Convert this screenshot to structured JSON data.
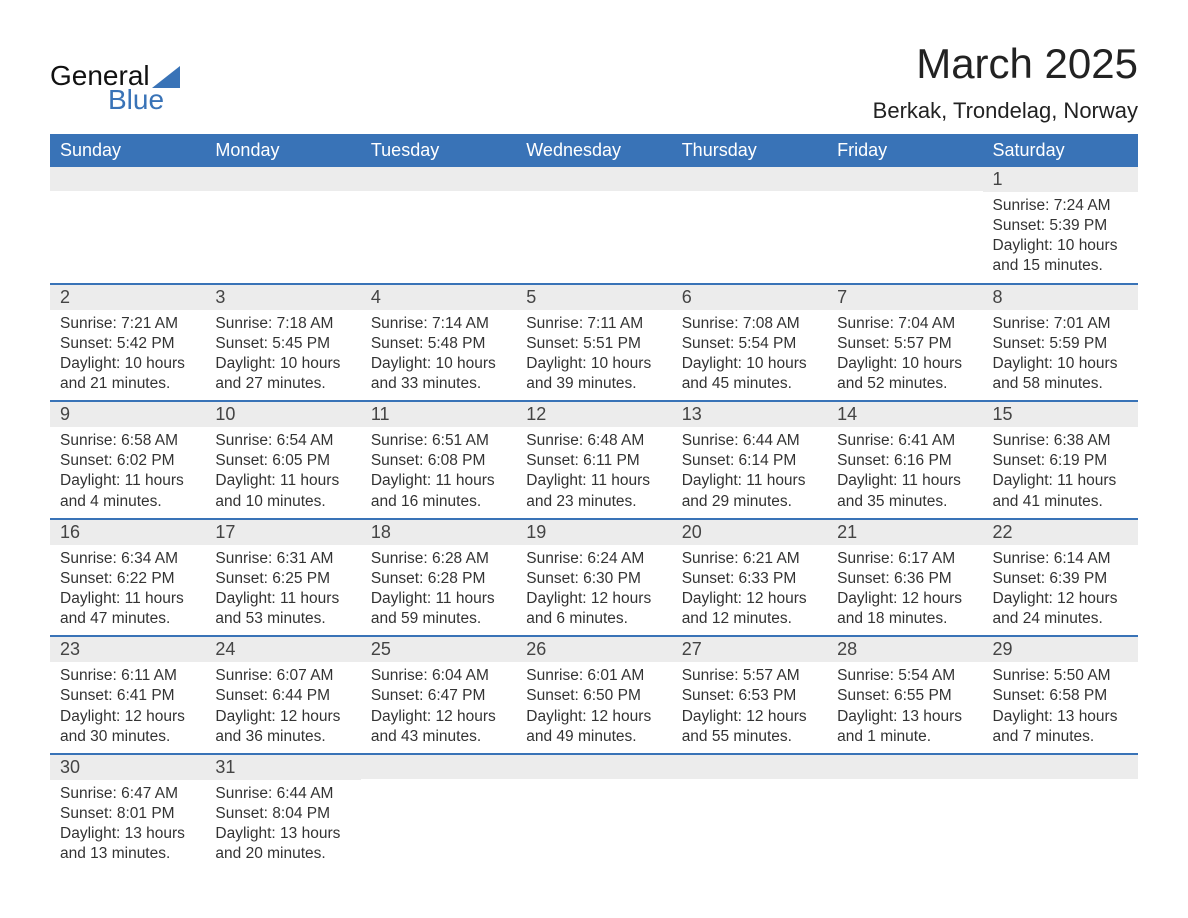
{
  "logo": {
    "text_general": "General",
    "text_blue": "Blue",
    "triangle_color": "#3973b7"
  },
  "header": {
    "month_title": "March 2025",
    "location": "Berkak, Trondelag, Norway"
  },
  "colors": {
    "header_bg": "#3973b7",
    "header_text": "#ffffff",
    "daynum_bg": "#ececec",
    "border": "#3973b7",
    "body_text": "#333333",
    "background": "#ffffff"
  },
  "fonts": {
    "month_title_size": 42,
    "location_size": 22,
    "weekday_size": 18,
    "daynum_size": 18,
    "body_size": 15.5
  },
  "calendar": {
    "type": "table",
    "columns": [
      "Sunday",
      "Monday",
      "Tuesday",
      "Wednesday",
      "Thursday",
      "Friday",
      "Saturday"
    ],
    "weeks": [
      [
        {
          "day": "",
          "sunrise": "",
          "sunset": "",
          "daylight": ""
        },
        {
          "day": "",
          "sunrise": "",
          "sunset": "",
          "daylight": ""
        },
        {
          "day": "",
          "sunrise": "",
          "sunset": "",
          "daylight": ""
        },
        {
          "day": "",
          "sunrise": "",
          "sunset": "",
          "daylight": ""
        },
        {
          "day": "",
          "sunrise": "",
          "sunset": "",
          "daylight": ""
        },
        {
          "day": "",
          "sunrise": "",
          "sunset": "",
          "daylight": ""
        },
        {
          "day": "1",
          "sunrise": "Sunrise: 7:24 AM",
          "sunset": "Sunset: 5:39 PM",
          "daylight": "Daylight: 10 hours and 15 minutes."
        }
      ],
      [
        {
          "day": "2",
          "sunrise": "Sunrise: 7:21 AM",
          "sunset": "Sunset: 5:42 PM",
          "daylight": "Daylight: 10 hours and 21 minutes."
        },
        {
          "day": "3",
          "sunrise": "Sunrise: 7:18 AM",
          "sunset": "Sunset: 5:45 PM",
          "daylight": "Daylight: 10 hours and 27 minutes."
        },
        {
          "day": "4",
          "sunrise": "Sunrise: 7:14 AM",
          "sunset": "Sunset: 5:48 PM",
          "daylight": "Daylight: 10 hours and 33 minutes."
        },
        {
          "day": "5",
          "sunrise": "Sunrise: 7:11 AM",
          "sunset": "Sunset: 5:51 PM",
          "daylight": "Daylight: 10 hours and 39 minutes."
        },
        {
          "day": "6",
          "sunrise": "Sunrise: 7:08 AM",
          "sunset": "Sunset: 5:54 PM",
          "daylight": "Daylight: 10 hours and 45 minutes."
        },
        {
          "day": "7",
          "sunrise": "Sunrise: 7:04 AM",
          "sunset": "Sunset: 5:57 PM",
          "daylight": "Daylight: 10 hours and 52 minutes."
        },
        {
          "day": "8",
          "sunrise": "Sunrise: 7:01 AM",
          "sunset": "Sunset: 5:59 PM",
          "daylight": "Daylight: 10 hours and 58 minutes."
        }
      ],
      [
        {
          "day": "9",
          "sunrise": "Sunrise: 6:58 AM",
          "sunset": "Sunset: 6:02 PM",
          "daylight": "Daylight: 11 hours and 4 minutes."
        },
        {
          "day": "10",
          "sunrise": "Sunrise: 6:54 AM",
          "sunset": "Sunset: 6:05 PM",
          "daylight": "Daylight: 11 hours and 10 minutes."
        },
        {
          "day": "11",
          "sunrise": "Sunrise: 6:51 AM",
          "sunset": "Sunset: 6:08 PM",
          "daylight": "Daylight: 11 hours and 16 minutes."
        },
        {
          "day": "12",
          "sunrise": "Sunrise: 6:48 AM",
          "sunset": "Sunset: 6:11 PM",
          "daylight": "Daylight: 11 hours and 23 minutes."
        },
        {
          "day": "13",
          "sunrise": "Sunrise: 6:44 AM",
          "sunset": "Sunset: 6:14 PM",
          "daylight": "Daylight: 11 hours and 29 minutes."
        },
        {
          "day": "14",
          "sunrise": "Sunrise: 6:41 AM",
          "sunset": "Sunset: 6:16 PM",
          "daylight": "Daylight: 11 hours and 35 minutes."
        },
        {
          "day": "15",
          "sunrise": "Sunrise: 6:38 AM",
          "sunset": "Sunset: 6:19 PM",
          "daylight": "Daylight: 11 hours and 41 minutes."
        }
      ],
      [
        {
          "day": "16",
          "sunrise": "Sunrise: 6:34 AM",
          "sunset": "Sunset: 6:22 PM",
          "daylight": "Daylight: 11 hours and 47 minutes."
        },
        {
          "day": "17",
          "sunrise": "Sunrise: 6:31 AM",
          "sunset": "Sunset: 6:25 PM",
          "daylight": "Daylight: 11 hours and 53 minutes."
        },
        {
          "day": "18",
          "sunrise": "Sunrise: 6:28 AM",
          "sunset": "Sunset: 6:28 PM",
          "daylight": "Daylight: 11 hours and 59 minutes."
        },
        {
          "day": "19",
          "sunrise": "Sunrise: 6:24 AM",
          "sunset": "Sunset: 6:30 PM",
          "daylight": "Daylight: 12 hours and 6 minutes."
        },
        {
          "day": "20",
          "sunrise": "Sunrise: 6:21 AM",
          "sunset": "Sunset: 6:33 PM",
          "daylight": "Daylight: 12 hours and 12 minutes."
        },
        {
          "day": "21",
          "sunrise": "Sunrise: 6:17 AM",
          "sunset": "Sunset: 6:36 PM",
          "daylight": "Daylight: 12 hours and 18 minutes."
        },
        {
          "day": "22",
          "sunrise": "Sunrise: 6:14 AM",
          "sunset": "Sunset: 6:39 PM",
          "daylight": "Daylight: 12 hours and 24 minutes."
        }
      ],
      [
        {
          "day": "23",
          "sunrise": "Sunrise: 6:11 AM",
          "sunset": "Sunset: 6:41 PM",
          "daylight": "Daylight: 12 hours and 30 minutes."
        },
        {
          "day": "24",
          "sunrise": "Sunrise: 6:07 AM",
          "sunset": "Sunset: 6:44 PM",
          "daylight": "Daylight: 12 hours and 36 minutes."
        },
        {
          "day": "25",
          "sunrise": "Sunrise: 6:04 AM",
          "sunset": "Sunset: 6:47 PM",
          "daylight": "Daylight: 12 hours and 43 minutes."
        },
        {
          "day": "26",
          "sunrise": "Sunrise: 6:01 AM",
          "sunset": "Sunset: 6:50 PM",
          "daylight": "Daylight: 12 hours and 49 minutes."
        },
        {
          "day": "27",
          "sunrise": "Sunrise: 5:57 AM",
          "sunset": "Sunset: 6:53 PM",
          "daylight": "Daylight: 12 hours and 55 minutes."
        },
        {
          "day": "28",
          "sunrise": "Sunrise: 5:54 AM",
          "sunset": "Sunset: 6:55 PM",
          "daylight": "Daylight: 13 hours and 1 minute."
        },
        {
          "day": "29",
          "sunrise": "Sunrise: 5:50 AM",
          "sunset": "Sunset: 6:58 PM",
          "daylight": "Daylight: 13 hours and 7 minutes."
        }
      ],
      [
        {
          "day": "30",
          "sunrise": "Sunrise: 6:47 AM",
          "sunset": "Sunset: 8:01 PM",
          "daylight": "Daylight: 13 hours and 13 minutes."
        },
        {
          "day": "31",
          "sunrise": "Sunrise: 6:44 AM",
          "sunset": "Sunset: 8:04 PM",
          "daylight": "Daylight: 13 hours and 20 minutes."
        },
        {
          "day": "",
          "sunrise": "",
          "sunset": "",
          "daylight": ""
        },
        {
          "day": "",
          "sunrise": "",
          "sunset": "",
          "daylight": ""
        },
        {
          "day": "",
          "sunrise": "",
          "sunset": "",
          "daylight": ""
        },
        {
          "day": "",
          "sunrise": "",
          "sunset": "",
          "daylight": ""
        },
        {
          "day": "",
          "sunrise": "",
          "sunset": "",
          "daylight": ""
        }
      ]
    ]
  }
}
